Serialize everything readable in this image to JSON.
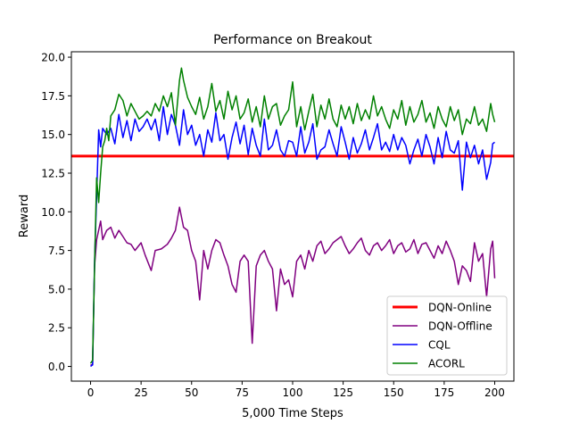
{
  "chart_data": {
    "type": "line",
    "title": "Performance on Breakout",
    "xlabel": "5,000 Time Steps",
    "ylabel": "Reward",
    "xlim": [
      -9.5,
      209.5
    ],
    "ylim": [
      -0.95,
      20.35
    ],
    "xticks": [
      0,
      25,
      50,
      75,
      100,
      125,
      150,
      175,
      200
    ],
    "yticks": [
      0.0,
      2.5,
      5.0,
      7.5,
      10.0,
      12.5,
      15.0,
      17.5,
      20.0
    ],
    "xtick_labels": [
      "0",
      "25",
      "50",
      "75",
      "100",
      "125",
      "150",
      "175",
      "200"
    ],
    "ytick_labels": [
      "0.0",
      "2.5",
      "5.0",
      "7.5",
      "10.0",
      "12.5",
      "15.0",
      "17.5",
      "20.0"
    ],
    "grid": false,
    "legend_position": "lower-right",
    "hline": {
      "name": "DQN-Online",
      "value": 13.6,
      "color": "#ff0000"
    },
    "series": [
      {
        "name": "DQN-Offline",
        "color": "#800080",
        "key_points": [
          [
            0,
            0.1
          ],
          [
            1,
            0.1
          ],
          [
            2,
            6.5
          ],
          [
            3,
            8.2
          ],
          [
            5,
            9.4
          ],
          [
            6,
            8.2
          ],
          [
            8,
            8.8
          ],
          [
            10,
            9.0
          ],
          [
            12,
            8.3
          ],
          [
            14,
            8.8
          ],
          [
            16,
            8.4
          ],
          [
            18,
            8.0
          ],
          [
            20,
            7.9
          ],
          [
            22,
            7.5
          ],
          [
            25,
            8.0
          ],
          [
            27,
            7.2
          ],
          [
            30,
            6.2
          ],
          [
            32,
            7.5
          ],
          [
            35,
            7.6
          ],
          [
            38,
            7.9
          ],
          [
            40,
            8.3
          ],
          [
            42,
            8.8
          ],
          [
            44,
            10.3
          ],
          [
            46,
            9.0
          ],
          [
            48,
            8.8
          ],
          [
            50,
            7.5
          ],
          [
            52,
            6.8
          ],
          [
            54,
            4.3
          ],
          [
            56,
            7.5
          ],
          [
            58,
            6.3
          ],
          [
            60,
            7.5
          ],
          [
            62,
            8.2
          ],
          [
            64,
            8.0
          ],
          [
            66,
            7.2
          ],
          [
            68,
            6.5
          ],
          [
            70,
            5.3
          ],
          [
            72,
            4.8
          ],
          [
            74,
            6.8
          ],
          [
            76,
            7.2
          ],
          [
            78,
            6.8
          ],
          [
            80,
            1.5
          ],
          [
            82,
            6.5
          ],
          [
            84,
            7.2
          ],
          [
            86,
            7.5
          ],
          [
            88,
            6.8
          ],
          [
            90,
            6.3
          ],
          [
            92,
            3.6
          ],
          [
            94,
            6.3
          ],
          [
            96,
            5.3
          ],
          [
            98,
            5.6
          ],
          [
            100,
            4.5
          ],
          [
            102,
            6.8
          ],
          [
            104,
            7.2
          ],
          [
            106,
            6.3
          ],
          [
            108,
            7.5
          ],
          [
            110,
            6.8
          ],
          [
            112,
            7.8
          ],
          [
            114,
            8.1
          ],
          [
            116,
            7.3
          ],
          [
            118,
            7.6
          ],
          [
            120,
            8.0
          ],
          [
            122,
            8.2
          ],
          [
            124,
            8.4
          ],
          [
            126,
            7.8
          ],
          [
            128,
            7.3
          ],
          [
            130,
            7.6
          ],
          [
            132,
            8.0
          ],
          [
            134,
            8.3
          ],
          [
            136,
            7.5
          ],
          [
            138,
            7.2
          ],
          [
            140,
            7.8
          ],
          [
            142,
            8.0
          ],
          [
            144,
            7.5
          ],
          [
            146,
            7.8
          ],
          [
            148,
            8.2
          ],
          [
            150,
            7.3
          ],
          [
            152,
            7.8
          ],
          [
            154,
            8.0
          ],
          [
            156,
            7.4
          ],
          [
            158,
            7.6
          ],
          [
            160,
            8.2
          ],
          [
            162,
            7.3
          ],
          [
            164,
            7.9
          ],
          [
            166,
            8.0
          ],
          [
            168,
            7.5
          ],
          [
            170,
            7.0
          ],
          [
            172,
            7.8
          ],
          [
            174,
            7.3
          ],
          [
            176,
            8.1
          ],
          [
            178,
            7.5
          ],
          [
            180,
            6.8
          ],
          [
            182,
            5.3
          ],
          [
            184,
            6.5
          ],
          [
            186,
            6.2
          ],
          [
            188,
            5.5
          ],
          [
            190,
            8.0
          ],
          [
            192,
            6.8
          ],
          [
            194,
            7.3
          ],
          [
            196,
            4.5
          ],
          [
            198,
            7.6
          ],
          [
            199,
            8.1
          ],
          [
            200,
            5.7
          ]
        ]
      },
      {
        "name": "CQL",
        "color": "#0000ff",
        "key_points": [
          [
            0,
            0.0
          ],
          [
            1,
            0.1
          ],
          [
            2,
            6.8
          ],
          [
            3,
            11.0
          ],
          [
            4,
            15.3
          ],
          [
            5,
            14.2
          ],
          [
            6,
            15.4
          ],
          [
            8,
            15.0
          ],
          [
            10,
            15.4
          ],
          [
            12,
            14.4
          ],
          [
            14,
            16.3
          ],
          [
            16,
            14.8
          ],
          [
            18,
            15.9
          ],
          [
            20,
            14.6
          ],
          [
            22,
            16.0
          ],
          [
            24,
            15.2
          ],
          [
            26,
            15.5
          ],
          [
            28,
            16.0
          ],
          [
            30,
            15.3
          ],
          [
            32,
            16.0
          ],
          [
            34,
            14.6
          ],
          [
            36,
            16.8
          ],
          [
            38,
            15.0
          ],
          [
            40,
            16.3
          ],
          [
            42,
            15.6
          ],
          [
            44,
            14.3
          ],
          [
            46,
            16.6
          ],
          [
            48,
            15.0
          ],
          [
            50,
            15.6
          ],
          [
            52,
            14.3
          ],
          [
            54,
            15.0
          ],
          [
            56,
            13.6
          ],
          [
            58,
            15.3
          ],
          [
            60,
            14.5
          ],
          [
            62,
            16.4
          ],
          [
            64,
            14.6
          ],
          [
            66,
            15.0
          ],
          [
            68,
            13.4
          ],
          [
            70,
            14.8
          ],
          [
            72,
            15.8
          ],
          [
            74,
            14.4
          ],
          [
            76,
            15.6
          ],
          [
            78,
            13.7
          ],
          [
            80,
            15.4
          ],
          [
            82,
            14.3
          ],
          [
            84,
            13.6
          ],
          [
            86,
            16.0
          ],
          [
            88,
            14.0
          ],
          [
            90,
            14.3
          ],
          [
            92,
            15.3
          ],
          [
            94,
            14.0
          ],
          [
            96,
            13.6
          ],
          [
            98,
            14.6
          ],
          [
            100,
            14.5
          ],
          [
            102,
            13.6
          ],
          [
            104,
            15.5
          ],
          [
            106,
            13.8
          ],
          [
            108,
            14.5
          ],
          [
            110,
            15.7
          ],
          [
            112,
            13.4
          ],
          [
            114,
            14.0
          ],
          [
            116,
            14.2
          ],
          [
            118,
            15.3
          ],
          [
            120,
            14.4
          ],
          [
            122,
            13.6
          ],
          [
            124,
            15.5
          ],
          [
            126,
            14.5
          ],
          [
            128,
            13.4
          ],
          [
            130,
            14.8
          ],
          [
            132,
            13.8
          ],
          [
            134,
            14.4
          ],
          [
            136,
            15.3
          ],
          [
            138,
            14.0
          ],
          [
            140,
            14.8
          ],
          [
            142,
            15.7
          ],
          [
            144,
            14.0
          ],
          [
            146,
            14.5
          ],
          [
            148,
            13.9
          ],
          [
            150,
            15.0
          ],
          [
            152,
            14.0
          ],
          [
            154,
            14.8
          ],
          [
            156,
            14.3
          ],
          [
            158,
            13.1
          ],
          [
            160,
            14.0
          ],
          [
            162,
            14.7
          ],
          [
            164,
            13.6
          ],
          [
            166,
            15.0
          ],
          [
            168,
            14.2
          ],
          [
            170,
            13.1
          ],
          [
            172,
            14.8
          ],
          [
            174,
            13.5
          ],
          [
            176,
            15.2
          ],
          [
            178,
            14.0
          ],
          [
            180,
            13.8
          ],
          [
            182,
            14.6
          ],
          [
            184,
            11.4
          ],
          [
            186,
            14.5
          ],
          [
            188,
            13.5
          ],
          [
            190,
            14.3
          ],
          [
            192,
            13.1
          ],
          [
            194,
            14.0
          ],
          [
            196,
            12.1
          ],
          [
            198,
            13.2
          ],
          [
            199,
            14.4
          ],
          [
            200,
            14.5
          ]
        ]
      },
      {
        "name": "ACORL",
        "color": "#008000",
        "key_points": [
          [
            0,
            0.2
          ],
          [
            1,
            0.4
          ],
          [
            2,
            6.5
          ],
          [
            3,
            12.2
          ],
          [
            4,
            10.6
          ],
          [
            5,
            12.5
          ],
          [
            6,
            14.2
          ],
          [
            7,
            14.6
          ],
          [
            8,
            15.4
          ],
          [
            9,
            14.6
          ],
          [
            10,
            16.2
          ],
          [
            12,
            16.6
          ],
          [
            14,
            17.6
          ],
          [
            16,
            17.2
          ],
          [
            18,
            16.2
          ],
          [
            20,
            17.0
          ],
          [
            22,
            16.5
          ],
          [
            24,
            16.0
          ],
          [
            26,
            16.2
          ],
          [
            28,
            16.5
          ],
          [
            30,
            16.2
          ],
          [
            32,
            17.0
          ],
          [
            34,
            16.5
          ],
          [
            36,
            17.5
          ],
          [
            38,
            16.8
          ],
          [
            40,
            17.7
          ],
          [
            42,
            15.6
          ],
          [
            44,
            18.5
          ],
          [
            45,
            19.3
          ],
          [
            46,
            18.5
          ],
          [
            48,
            17.4
          ],
          [
            50,
            16.8
          ],
          [
            52,
            16.3
          ],
          [
            54,
            17.4
          ],
          [
            56,
            16.0
          ],
          [
            58,
            16.8
          ],
          [
            60,
            18.3
          ],
          [
            62,
            16.5
          ],
          [
            64,
            17.2
          ],
          [
            66,
            16.0
          ],
          [
            68,
            17.8
          ],
          [
            70,
            16.6
          ],
          [
            72,
            17.5
          ],
          [
            74,
            16.0
          ],
          [
            76,
            16.4
          ],
          [
            78,
            17.3
          ],
          [
            80,
            15.8
          ],
          [
            82,
            16.8
          ],
          [
            84,
            15.5
          ],
          [
            86,
            17.5
          ],
          [
            88,
            16.0
          ],
          [
            90,
            16.8
          ],
          [
            92,
            17.0
          ],
          [
            94,
            15.6
          ],
          [
            96,
            16.2
          ],
          [
            98,
            16.6
          ],
          [
            100,
            18.4
          ],
          [
            102,
            15.5
          ],
          [
            104,
            16.8
          ],
          [
            106,
            15.3
          ],
          [
            108,
            16.5
          ],
          [
            110,
            17.6
          ],
          [
            112,
            15.5
          ],
          [
            114,
            16.9
          ],
          [
            116,
            16.0
          ],
          [
            118,
            17.3
          ],
          [
            120,
            16.0
          ],
          [
            122,
            15.5
          ],
          [
            124,
            16.9
          ],
          [
            126,
            16.0
          ],
          [
            128,
            16.8
          ],
          [
            130,
            15.7
          ],
          [
            132,
            17.0
          ],
          [
            134,
            15.9
          ],
          [
            136,
            16.6
          ],
          [
            138,
            16.0
          ],
          [
            140,
            17.5
          ],
          [
            142,
            16.2
          ],
          [
            144,
            16.8
          ],
          [
            146,
            16.0
          ],
          [
            148,
            15.4
          ],
          [
            150,
            16.6
          ],
          [
            152,
            16.0
          ],
          [
            154,
            17.2
          ],
          [
            156,
            15.6
          ],
          [
            158,
            16.8
          ],
          [
            160,
            15.8
          ],
          [
            162,
            16.3
          ],
          [
            164,
            17.2
          ],
          [
            166,
            15.8
          ],
          [
            168,
            16.4
          ],
          [
            170,
            15.4
          ],
          [
            172,
            16.8
          ],
          [
            174,
            16.0
          ],
          [
            176,
            15.5
          ],
          [
            178,
            16.8
          ],
          [
            180,
            15.9
          ],
          [
            182,
            16.6
          ],
          [
            184,
            15.0
          ],
          [
            186,
            16.0
          ],
          [
            188,
            15.7
          ],
          [
            190,
            16.8
          ],
          [
            192,
            15.6
          ],
          [
            194,
            16.0
          ],
          [
            196,
            15.2
          ],
          [
            198,
            17.0
          ],
          [
            199,
            16.3
          ],
          [
            200,
            15.8
          ]
        ]
      }
    ]
  }
}
